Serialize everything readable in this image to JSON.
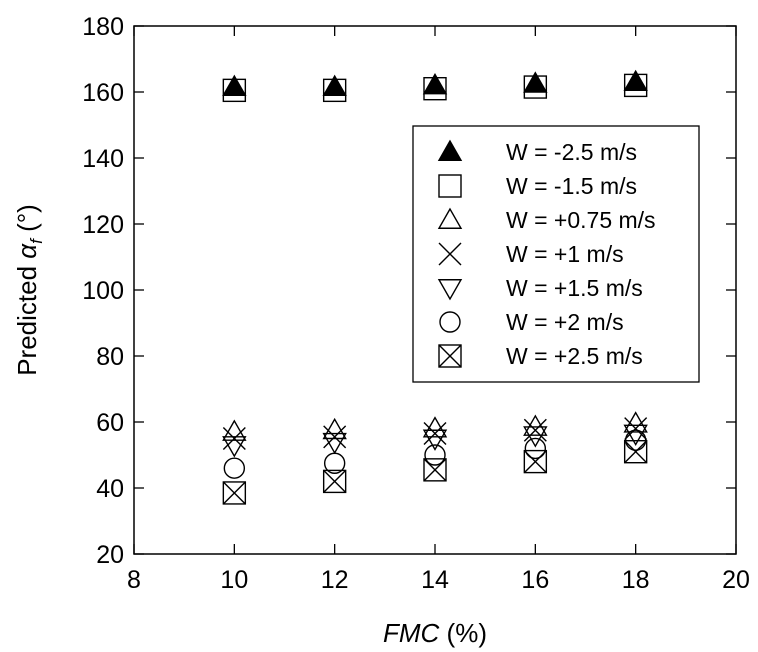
{
  "chart_data": {
    "type": "scatter",
    "xlabel": "FMC (%)",
    "xlabel_parts": {
      "italic": "FMC",
      "rest": " (%)"
    },
    "ylabel": "Predicted αf (°)",
    "ylabel_parts": {
      "prefix": "Predicted ",
      "symbol": "α",
      "subscript": "f",
      "suffix": " (°)"
    },
    "xlim": [
      8,
      20
    ],
    "ylim": [
      20,
      180
    ],
    "xticks": [
      "8",
      "10",
      "12",
      "14",
      "16",
      "18",
      "20"
    ],
    "yticks": [
      "20",
      "40",
      "60",
      "80",
      "100",
      "120",
      "140",
      "160",
      "180"
    ],
    "grid": false,
    "legend_position": "upper-right",
    "x": [
      10,
      12,
      14,
      16,
      18
    ],
    "series": [
      {
        "name": "W = -2.5 m/s",
        "marker": "triangle-up-filled",
        "values": [
          161.5,
          161.5,
          162,
          162.5,
          163
        ]
      },
      {
        "name": "W = -1.5 m/s",
        "marker": "square",
        "values": [
          160.5,
          160.5,
          161,
          161.5,
          162
        ]
      },
      {
        "name": "W = +0.75 m/s",
        "marker": "triangle-up",
        "values": [
          57,
          57.5,
          58,
          58.5,
          59.5
        ]
      },
      {
        "name": "W = +1 m/s",
        "marker": "x",
        "values": [
          55,
          55.5,
          56.5,
          57.5,
          58
        ]
      },
      {
        "name": "W = +1.5 m/s",
        "marker": "triangle-down",
        "values": [
          53,
          54,
          55,
          56,
          56.5
        ]
      },
      {
        "name": "W = +2 m/s",
        "marker": "circle",
        "values": [
          46,
          47.5,
          50,
          52,
          54.5
        ]
      },
      {
        "name": "W = +2.5 m/s",
        "marker": "square-x",
        "values": [
          38.5,
          42,
          45.5,
          48,
          51
        ]
      }
    ],
    "colors": {
      "marker": "#000000",
      "background": "#ffffff"
    }
  }
}
